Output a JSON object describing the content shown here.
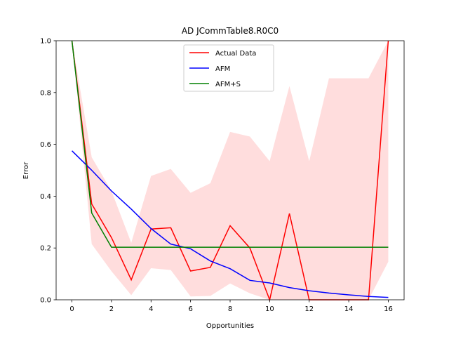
{
  "chart_data": {
    "type": "line",
    "title": "AD JCommTable8.R0C0",
    "xlabel": "Opportunities",
    "ylabel": "Error",
    "xlim": [
      -0.8,
      16.8
    ],
    "ylim": [
      0,
      1.0
    ],
    "xticks": [
      0,
      2,
      4,
      6,
      8,
      10,
      12,
      14,
      16
    ],
    "yticks": [
      0.0,
      0.2,
      0.4,
      0.6,
      0.8,
      1.0
    ],
    "xtick_labels": [
      "0",
      "2",
      "4",
      "6",
      "8",
      "10",
      "12",
      "14",
      "16"
    ],
    "ytick_labels": [
      "0.0",
      "0.2",
      "0.4",
      "0.6",
      "0.8",
      "1.0"
    ],
    "grid": false,
    "legend_position": "top-center",
    "x": [
      0,
      1,
      2,
      3,
      4,
      5,
      6,
      7,
      8,
      9,
      10,
      11,
      12,
      13,
      14,
      15,
      16
    ],
    "series": [
      {
        "name": "Actual Data",
        "color": "#ff0000",
        "values": [
          1.0,
          0.37,
          0.24,
          0.077,
          0.273,
          0.278,
          0.111,
          0.125,
          0.286,
          0.2,
          0.0,
          0.333,
          0.0,
          0.0,
          0.0,
          0.0,
          1.0
        ]
      },
      {
        "name": "AFM",
        "color": "#0000ff",
        "values": [
          0.575,
          0.5,
          0.42,
          0.35,
          0.275,
          0.215,
          0.197,
          0.15,
          0.12,
          0.075,
          0.065,
          0.047,
          0.035,
          0.026,
          0.019,
          0.013,
          0.009
        ]
      },
      {
        "name": "AFM+S",
        "color": "#008000",
        "values": [
          1.0,
          0.335,
          0.203,
          0.203,
          0.203,
          0.203,
          0.203,
          0.203,
          0.203,
          0.203,
          0.203,
          0.203,
          0.203,
          0.203,
          0.203,
          0.203,
          0.203
        ]
      }
    ],
    "confidence_band": {
      "color": "#ffdddd",
      "lower": [
        1.0,
        0.215,
        0.11,
        0.018,
        0.122,
        0.115,
        0.013,
        0.015,
        0.063,
        0.025,
        0.0,
        0.0,
        0.0,
        0.0,
        0.0,
        0.0,
        0.147
      ],
      "upper": [
        1.0,
        0.55,
        0.42,
        0.22,
        0.478,
        0.505,
        0.413,
        0.45,
        0.648,
        0.63,
        0.535,
        0.825,
        0.535,
        0.855,
        0.855,
        0.855,
        1.0
      ]
    }
  }
}
